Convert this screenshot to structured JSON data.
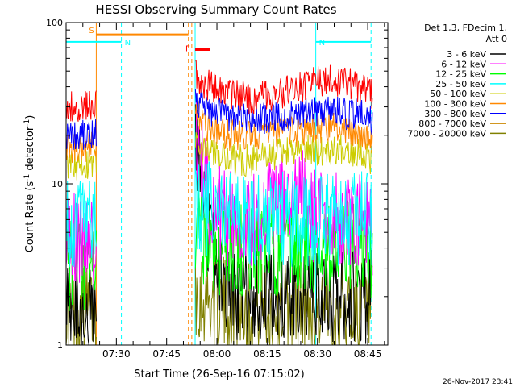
{
  "chart_data": {
    "type": "line",
    "title": "HESSI Observing Summary Count Rates",
    "xlabel": "Start Time (26-Sep-16 07:15:02)",
    "ylabel_parts": [
      "Count Rate (s",
      "-1",
      " detector",
      "-1",
      ")"
    ],
    "y_scale": "log",
    "ylim": [
      1,
      100
    ],
    "y_tick_labels": [
      "1",
      "10",
      "100"
    ],
    "x_range_minutes_after_07_15": [
      0,
      96
    ],
    "x_ticks": [
      {
        "label": "07:30",
        "minutes": 15
      },
      {
        "label": "07:45",
        "minutes": 30
      },
      {
        "label": "08:00",
        "minutes": 45
      },
      {
        "label": "08:15",
        "minutes": 60
      },
      {
        "label": "08:30",
        "minutes": 75
      },
      {
        "label": "08:45",
        "minutes": 90
      }
    ],
    "legend_header": [
      "Det 1,3, FDecim 1,",
      "Att 0"
    ],
    "legend_placement": "right",
    "timestamp": "26-Nov-2017 23:41",
    "data_gap_minutes": [
      9,
      38.5
    ],
    "series": [
      {
        "name": "3 - 6 keV",
        "color": "#000000",
        "points": [
          [
            0,
            1.5
          ],
          [
            8,
            1.5
          ],
          [
            38.5,
            20
          ],
          [
            40,
            12
          ],
          [
            42,
            6
          ],
          [
            45,
            3
          ],
          [
            50,
            2
          ],
          [
            60,
            2
          ],
          [
            75,
            2
          ],
          [
            88,
            2
          ],
          [
            90,
            2
          ],
          [
            91.5,
            2
          ]
        ]
      },
      {
        "name": "6 - 12 keV",
        "color": "#ff00ff",
        "points": [
          [
            0,
            4.5
          ],
          [
            8,
            4.5
          ],
          [
            38.5,
            21
          ],
          [
            40,
            14
          ],
          [
            43,
            8
          ],
          [
            48,
            6
          ],
          [
            55,
            6
          ],
          [
            60,
            7
          ],
          [
            65,
            8
          ],
          [
            68,
            7
          ],
          [
            71,
            9
          ],
          [
            72,
            7
          ],
          [
            75,
            6
          ],
          [
            82,
            6
          ],
          [
            88,
            6
          ],
          [
            91.5,
            5
          ]
        ]
      },
      {
        "name": "12 - 25 keV",
        "color": "#00ff00",
        "points": [
          [
            0,
            3
          ],
          [
            8,
            3
          ],
          [
            38.5,
            5
          ],
          [
            45,
            4
          ],
          [
            60,
            4
          ],
          [
            75,
            4
          ],
          [
            88,
            4
          ],
          [
            91.5,
            3.5
          ]
        ]
      },
      {
        "name": "25 - 50 keV",
        "color": "#00ffff",
        "points": [
          [
            0,
            5.5
          ],
          [
            8,
            5.5
          ],
          [
            38.5,
            8
          ],
          [
            42,
            7
          ],
          [
            45,
            6.5
          ],
          [
            60,
            6
          ],
          [
            75,
            6
          ],
          [
            88,
            6
          ],
          [
            91.5,
            6
          ]
        ]
      },
      {
        "name": "50 - 100 keV",
        "color": "#cccc00",
        "points": [
          [
            0,
            13
          ],
          [
            8,
            13.5
          ],
          [
            38.5,
            17
          ],
          [
            42,
            16
          ],
          [
            48,
            14
          ],
          [
            55,
            14
          ],
          [
            60,
            15
          ],
          [
            70,
            16
          ],
          [
            80,
            16.5
          ],
          [
            88,
            16
          ],
          [
            91.5,
            14
          ]
        ]
      },
      {
        "name": "100 - 300 keV",
        "color": "#ff8800",
        "points": [
          [
            0,
            17
          ],
          [
            8,
            17
          ],
          [
            38.5,
            30
          ],
          [
            40,
            25
          ],
          [
            42,
            23
          ],
          [
            45,
            21
          ],
          [
            50,
            20
          ],
          [
            60,
            20.5
          ],
          [
            70,
            21.5
          ],
          [
            80,
            22.5
          ],
          [
            85,
            21.5
          ],
          [
            88,
            21
          ],
          [
            91.5,
            19
          ]
        ]
      },
      {
        "name": "300 - 800 keV",
        "color": "#0000ff",
        "points": [
          [
            0,
            20
          ],
          [
            8,
            20
          ],
          [
            38.5,
            34
          ],
          [
            40,
            31
          ],
          [
            42,
            29
          ],
          [
            45,
            28
          ],
          [
            50,
            26
          ],
          [
            55,
            25
          ],
          [
            60,
            25.5
          ],
          [
            65,
            26
          ],
          [
            70,
            27
          ],
          [
            75,
            27.5
          ],
          [
            80,
            28
          ],
          [
            85,
            27
          ],
          [
            88,
            27
          ],
          [
            91.5,
            25
          ]
        ]
      },
      {
        "name": "800 - 7000 keV",
        "color": "#cc8800",
        "points": []
      },
      {
        "name": "7000 - 20000 keV",
        "color": "#808000",
        "points": [
          [
            0,
            1.6
          ],
          [
            8,
            1.6
          ],
          [
            38.5,
            2.2
          ],
          [
            45,
            1.8
          ],
          [
            60,
            1.7
          ],
          [
            75,
            1.7
          ],
          [
            88,
            1.7
          ],
          [
            91.5,
            1.6
          ]
        ]
      },
      {
        "name": "3 - 6 keV (upper trace)",
        "color": "#ff0000",
        "legend": false,
        "points": [
          [
            0,
            30
          ],
          [
            8,
            31
          ],
          [
            38.5,
            48
          ],
          [
            40,
            44
          ],
          [
            42,
            41
          ],
          [
            45,
            38
          ],
          [
            50,
            36
          ],
          [
            55,
            34
          ],
          [
            60,
            35
          ],
          [
            65,
            37
          ],
          [
            70,
            40
          ],
          [
            75,
            43
          ],
          [
            80,
            44
          ],
          [
            85,
            42
          ],
          [
            88,
            40
          ],
          [
            91.5,
            36
          ]
        ]
      }
    ],
    "flags": [
      {
        "label": "S",
        "color": "#ff8800",
        "start_minutes": 9,
        "end_minutes": 36.5,
        "level": 84,
        "style": "thick-bar"
      },
      {
        "label": "N",
        "color": "#00ffff",
        "start_minutes": 0,
        "end_minutes": 16.5,
        "level": 76,
        "style": "thin-bar"
      },
      {
        "label": "N",
        "color": "#00ffff",
        "start_minutes": 74.5,
        "end_minutes": 91,
        "level": 76,
        "style": "thin-bar"
      },
      {
        "label": "F",
        "color": "#ff0000",
        "start_minutes": 38.5,
        "end_minutes": 43,
        "level": 68,
        "style": "thick-bar"
      }
    ],
    "vlines": [
      {
        "minutes": 9,
        "color": "#ff8800",
        "style": "solid"
      },
      {
        "minutes": 16.5,
        "color": "#00ffff",
        "style": "dashed"
      },
      {
        "minutes": 36.5,
        "color": "#ff8800",
        "style": "dashed"
      },
      {
        "minutes": 37.5,
        "color": "#ff8800",
        "style": "dashed"
      },
      {
        "minutes": 38.5,
        "color": "#00ffff",
        "style": "solid"
      },
      {
        "minutes": 74.5,
        "color": "#00ffff",
        "style": "solid"
      },
      {
        "minutes": 91,
        "color": "#00ffff",
        "style": "dashed"
      }
    ]
  }
}
